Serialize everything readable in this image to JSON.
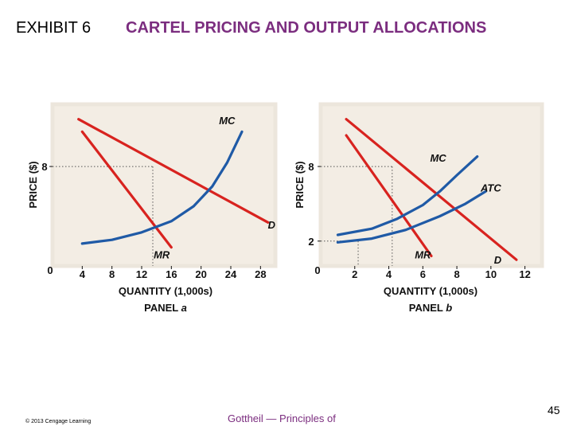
{
  "header": {
    "exhibit": "EXHIBIT 6",
    "title": "CARTEL PRICING AND OUTPUT ALLOCATIONS"
  },
  "colors": {
    "title": "#7b2d7f",
    "demand_curves": "#d8231f",
    "cost_curves": "#1f5aa6",
    "panel_bg": "#f3ede4",
    "panel_frame": "#ece6dc"
  },
  "chart_data": [
    {
      "type": "line",
      "panel_label": "PANEL a",
      "xlabel": "QUANTITY (1,000s)",
      "ylabel": "PRICE ($)",
      "origin_label": "0",
      "xlim": [
        0,
        30
      ],
      "ylim": [
        0,
        13
      ],
      "x_ticks": [
        4,
        8,
        12,
        16,
        20,
        24,
        28
      ],
      "x_tick_labels": [
        "4",
        "8",
        "12",
        "16",
        "20",
        "24",
        "28"
      ],
      "y_ticks": [
        8
      ],
      "y_tick_labels": [
        "8"
      ],
      "guides": [
        {
          "x": 13.5,
          "y": 8
        }
      ],
      "series": [
        {
          "name": "D",
          "label": "D",
          "kind": "demand",
          "points": [
            [
              3.5,
              11.8
            ],
            [
              29,
              3.5
            ]
          ],
          "label_at": [
            29.5,
            3.0
          ]
        },
        {
          "name": "MR",
          "label": "MR",
          "kind": "demand",
          "points": [
            [
              4,
              10.8
            ],
            [
              16,
              1.5
            ]
          ],
          "label_at": [
            14.7,
            0.6
          ]
        },
        {
          "name": "MC",
          "label": "MC",
          "kind": "cost",
          "points": [
            [
              4,
              1.8
            ],
            [
              8,
              2.1
            ],
            [
              12,
              2.7
            ],
            [
              16,
              3.6
            ],
            [
              19,
              4.8
            ],
            [
              21.5,
              6.4
            ],
            [
              23.5,
              8.3
            ],
            [
              25.5,
              10.8
            ]
          ],
          "label_at": [
            23.5,
            11.4
          ]
        }
      ]
    },
    {
      "type": "line",
      "panel_label": "PANEL b",
      "xlabel": "QUANTITY (1,000s)",
      "ylabel": "PRICE ($)",
      "origin_label": "0",
      "xlim": [
        0,
        13
      ],
      "ylim": [
        0,
        13
      ],
      "x_ticks": [
        2,
        4,
        6,
        8,
        10,
        12
      ],
      "x_tick_labels": [
        "2",
        "4",
        "6",
        "8",
        "10",
        "12"
      ],
      "y_ticks": [
        8,
        2
      ],
      "y_tick_labels": [
        "8",
        "2"
      ],
      "guides": [
        {
          "x": 4.2,
          "y": 8
        },
        {
          "x": 2.2,
          "y": 2
        }
      ],
      "series": [
        {
          "name": "D",
          "label": "D",
          "kind": "demand",
          "points": [
            [
              1.5,
              11.8
            ],
            [
              11.5,
              0.5
            ]
          ],
          "label_at": [
            10.4,
            0.2
          ]
        },
        {
          "name": "MR",
          "label": "MR",
          "kind": "demand",
          "points": [
            [
              1.5,
              10.5
            ],
            [
              6.5,
              0.8
            ]
          ],
          "label_at": [
            6.0,
            0.6
          ]
        },
        {
          "name": "MC",
          "label": "MC",
          "kind": "cost",
          "points": [
            [
              1.0,
              2.5
            ],
            [
              3,
              3.0
            ],
            [
              4.5,
              3.8
            ],
            [
              6,
              4.9
            ],
            [
              7,
              6.0
            ],
            [
              8,
              7.3
            ],
            [
              9.2,
              8.8
            ]
          ],
          "label_at": [
            6.9,
            8.4
          ]
        },
        {
          "name": "ATC",
          "label": "ATC",
          "kind": "cost",
          "points": [
            [
              1.0,
              1.9
            ],
            [
              3,
              2.2
            ],
            [
              5,
              2.9
            ],
            [
              7,
              4.0
            ],
            [
              8.5,
              5.0
            ],
            [
              9.7,
              6.0
            ]
          ],
          "label_at": [
            10.0,
            6.0
          ]
        }
      ]
    }
  ],
  "footer": {
    "copyright": "© 2013 Cengage Learning",
    "center": "Gottheil — Principles of",
    "page_number": "45"
  }
}
